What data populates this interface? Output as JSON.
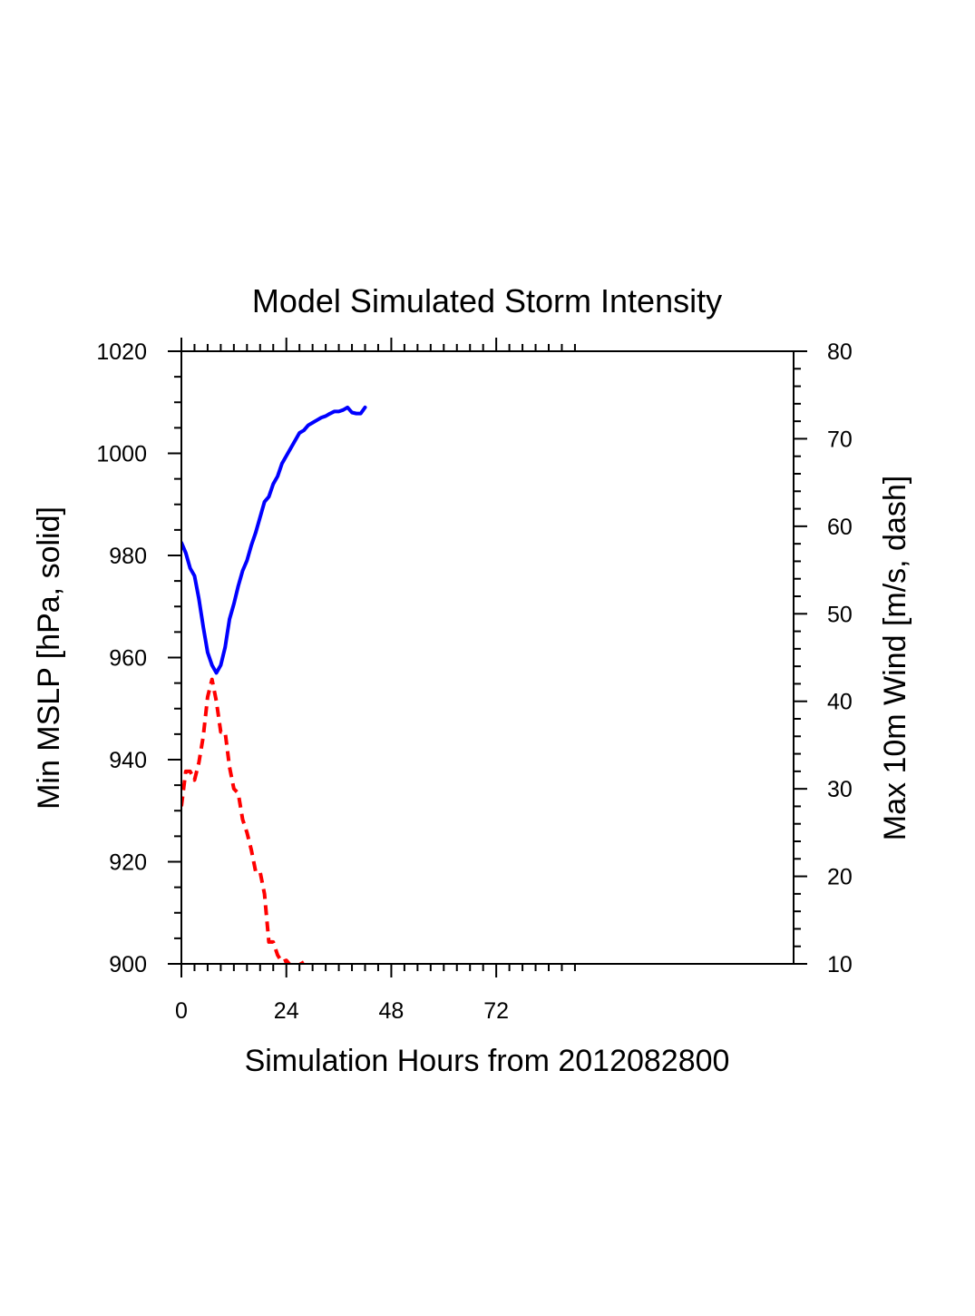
{
  "chart_data": {
    "type": "line",
    "title": "Model Simulated Storm Intensity",
    "xlabel": "Simulation Hours from 2012082800",
    "ylabel_left": "Min MSLP  [hPa, solid]",
    "ylabel_right": "Max 10m Wind  [m/s, dash]",
    "xlim": [
      0,
      140
    ],
    "ylim_left": [
      900,
      1020
    ],
    "ylim_right": [
      10,
      80
    ],
    "x_ticks": [
      0,
      24,
      48,
      72
    ],
    "x_tick_labels": [
      "0",
      "24",
      "48",
      "72"
    ],
    "y_left_ticks": [
      900,
      920,
      940,
      960,
      980,
      1000,
      1020
    ],
    "y_left_tick_labels": [
      "900",
      "920",
      "940",
      "960",
      "980",
      "1000",
      "1020"
    ],
    "y_right_ticks": [
      10,
      20,
      30,
      40,
      50,
      60,
      70,
      80
    ],
    "y_right_tick_labels": [
      "10",
      "20",
      "30",
      "40",
      "50",
      "60",
      "70",
      "80"
    ],
    "grid": false,
    "series": [
      {
        "axis": "left",
        "style": "solid",
        "color": "#0000ff",
        "x": [
          0,
          1,
          2,
          3,
          4,
          5,
          6,
          7,
          8,
          9,
          10,
          11,
          12,
          13,
          14,
          15,
          16,
          17,
          18,
          19,
          20,
          21,
          22,
          23,
          24,
          25,
          26,
          27,
          28,
          29,
          30,
          31,
          32,
          33,
          34,
          35,
          36,
          37,
          38,
          39,
          40,
          41,
          42
        ],
        "values": [
          982.5,
          980.5,
          977.5,
          976,
          971.5,
          966,
          961,
          958.5,
          957,
          958.5,
          962,
          967.5,
          970.5,
          974,
          977,
          979,
          982,
          984.5,
          987.5,
          990.5,
          991.5,
          994,
          995.5,
          998,
          999.5,
          1001,
          1002.5,
          1004,
          1004.5,
          1005.5,
          1006,
          1006.5,
          1007,
          1007.3,
          1007.8,
          1008.2,
          1008.2,
          1008.5,
          1009,
          1008,
          1007.8,
          1007.8,
          1009
        ]
      },
      {
        "axis": "right",
        "style": "dash",
        "color": "#ff0000",
        "x": [
          0,
          1,
          2,
          3,
          4,
          5,
          6,
          7,
          8,
          9,
          10,
          11,
          12,
          13,
          14,
          15,
          16,
          17,
          18,
          19,
          20,
          21,
          22,
          23,
          24,
          25,
          26,
          27,
          28
        ],
        "values": [
          28,
          32,
          32,
          31,
          33,
          36,
          40.5,
          42.5,
          40,
          36.5,
          36.5,
          32.5,
          30,
          29.5,
          26.5,
          25,
          23,
          20.5,
          20.5,
          18,
          12.5,
          12.5,
          11,
          10.2,
          10.4,
          9.8,
          9.6,
          9.9,
          10.2
        ]
      }
    ]
  }
}
